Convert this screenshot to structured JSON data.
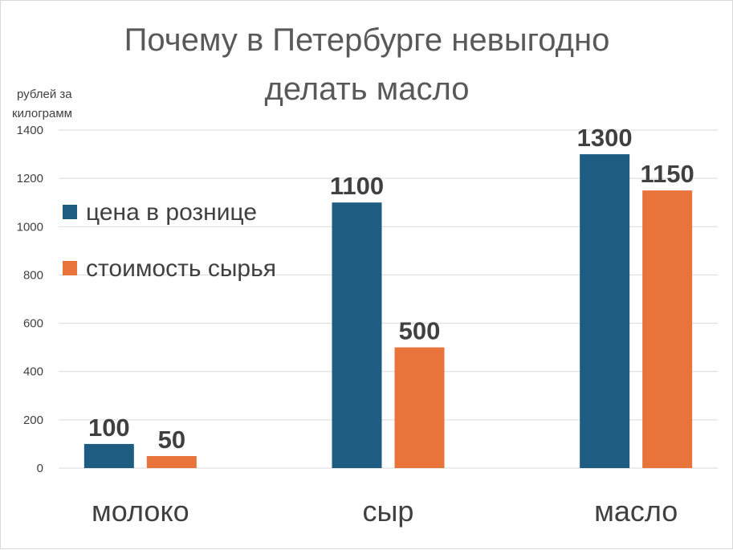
{
  "chart_data": {
    "type": "bar",
    "title_lines": [
      "Почему в Петербурге невыгодно",
      "делать масло"
    ],
    "ylabel_lines": [
      "рублей за",
      "килограмм"
    ],
    "xlabel": "",
    "categories": [
      "молоко",
      "сыр",
      "масло"
    ],
    "series": [
      {
        "name": "цена в рознице",
        "values": [
          100,
          1100,
          1300
        ],
        "color": "#1f5c82"
      },
      {
        "name": "стоимость сырья",
        "values": [
          50,
          500,
          1150
        ],
        "color": "#e8743b"
      }
    ],
    "ylim": [
      0,
      1400
    ],
    "yticks": [
      0,
      200,
      400,
      600,
      800,
      1000,
      1200,
      1400
    ],
    "ytick_labels": [
      "0",
      "200",
      "400",
      "600",
      "800",
      "1000",
      "1200",
      "1400"
    ],
    "data_labels": [
      [
        "100",
        "1100",
        "1300"
      ],
      [
        "50",
        "500",
        "1150"
      ]
    ],
    "grid": true,
    "legend_position": "left"
  }
}
